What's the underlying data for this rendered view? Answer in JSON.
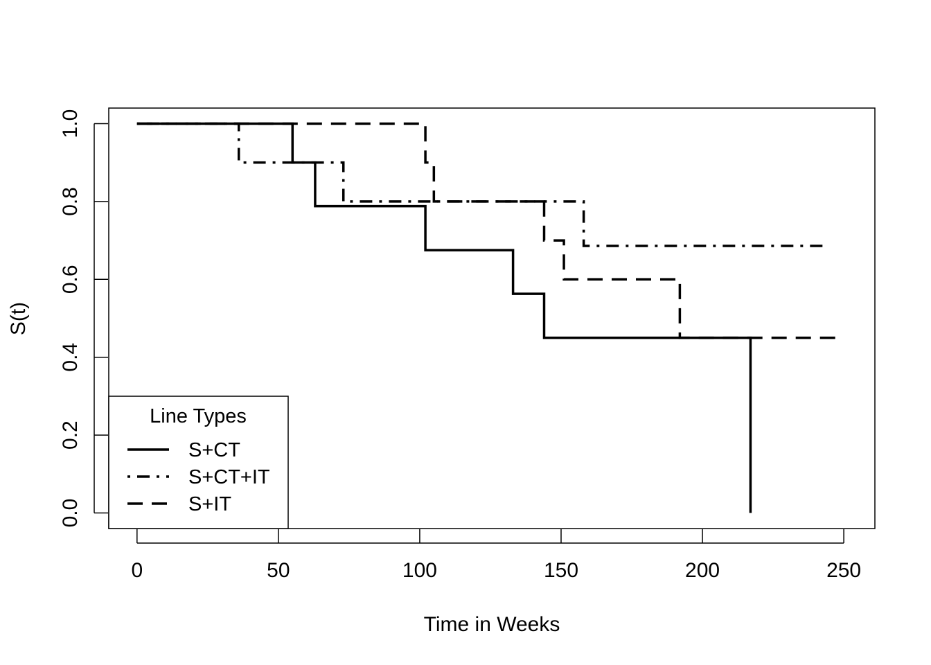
{
  "chart_data": {
    "type": "line",
    "subtype": "step",
    "title": "",
    "xlabel": "Time in Weeks",
    "ylabel": "S(t)",
    "xlim": [
      -10,
      261
    ],
    "ylim": [
      -0.04,
      1.04
    ],
    "x_ticks": [
      0,
      50,
      100,
      150,
      200,
      250
    ],
    "y_ticks": [
      0.0,
      0.2,
      0.4,
      0.6,
      0.8,
      1.0
    ],
    "x_tick_labels": [
      "0",
      "50",
      "100",
      "150",
      "200",
      "250"
    ],
    "y_tick_labels": [
      "0.0",
      "0.2",
      "0.4",
      "0.6",
      "0.8",
      "1.0"
    ],
    "grid": false,
    "legend": {
      "title": "Line Types",
      "placement": "bottom-left"
    },
    "series": [
      {
        "name": "S+CT",
        "line_style": "solid",
        "x": [
          0,
          55,
          63,
          102,
          133,
          144,
          217,
          217
        ],
        "y": [
          1.0,
          0.9,
          0.788,
          0.675,
          0.563,
          0.45,
          0.45,
          0.0
        ]
      },
      {
        "name": "S+CT+IT",
        "line_style": "dot-dash",
        "x": [
          0,
          36,
          73,
          158,
          243
        ],
        "y": [
          1.0,
          0.9,
          0.8,
          0.686,
          0.686
        ]
      },
      {
        "name": "S+IT",
        "line_style": "dash",
        "x": [
          0,
          102,
          105,
          144,
          151,
          192,
          250
        ],
        "y": [
          1.0,
          0.9,
          0.8,
          0.7,
          0.6,
          0.45,
          0.45
        ]
      }
    ]
  }
}
